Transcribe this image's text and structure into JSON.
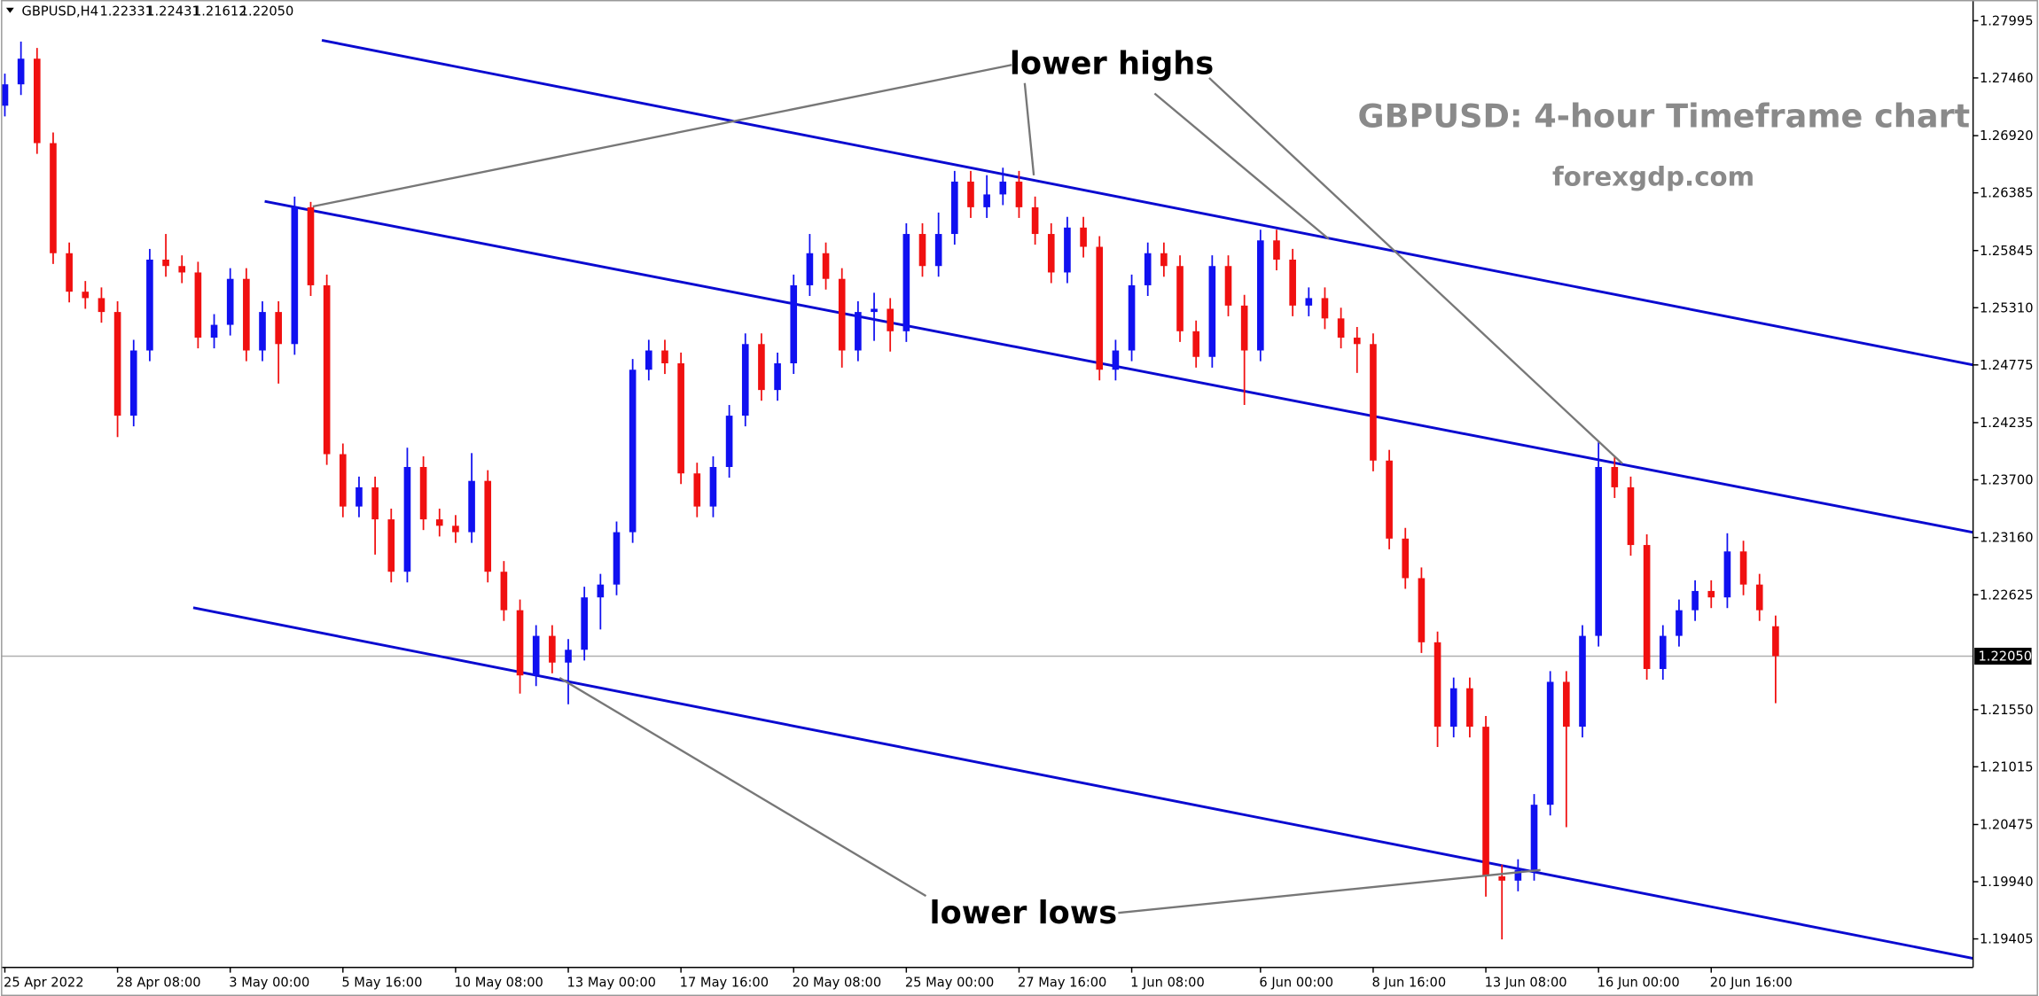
{
  "chart_data": {
    "type": "candlestick",
    "symbol": "GBPUSD,H4",
    "header_values": [
      1.22331,
      1.22431,
      1.21612,
      {
        "value": 1.2205,
        "label": "1.22050"
      }
    ],
    "watermark_title": "GBPUSD: 4-hour Timeframe chart",
    "watermark_site": "forexgdp.com",
    "annotations": [
      "lower highs",
      "lower lows"
    ],
    "up_color": "#1010f0",
    "down_color": "#f01010",
    "ylim": [
      1.19138,
      1.28189
    ],
    "yticks": [
      1.27995,
      {
        "value": 1.2746,
        "label": "1.27460"
      },
      {
        "value": 1.2692,
        "label": "1.26920"
      },
      1.26385,
      1.25845,
      {
        "value": 1.2531,
        "label": "1.25310"
      },
      1.24775,
      1.24235,
      {
        "value": 1.237,
        "label": "1.23700"
      },
      {
        "value": 1.2316,
        "label": "1.23160"
      },
      1.22625,
      {
        "value": 1.2155,
        "label": "1.21550"
      },
      1.21015,
      1.20475,
      {
        "value": 1.1994,
        "label": "1.19940"
      },
      1.19405
    ],
    "last_price": {
      "value": 1.2205,
      "label": "1.22050"
    },
    "categories": [
      "25 Apr 2022",
      null,
      null,
      null,
      null,
      null,
      null,
      "28 Apr 08:00",
      null,
      null,
      null,
      null,
      null,
      null,
      "3 May 00:00",
      null,
      null,
      null,
      null,
      null,
      null,
      "5 May 16:00",
      null,
      null,
      null,
      null,
      null,
      null,
      "10 May 08:00",
      null,
      null,
      null,
      null,
      null,
      null,
      "13 May 00:00",
      null,
      null,
      null,
      null,
      null,
      null,
      "17 May 16:00",
      null,
      null,
      null,
      null,
      null,
      null,
      "20 May 08:00",
      null,
      null,
      null,
      null,
      null,
      null,
      "25 May 00:00",
      null,
      null,
      null,
      null,
      null,
      null,
      "27 May 16:00",
      null,
      null,
      null,
      null,
      null,
      null,
      "1 Jun 08:00",
      null,
      null,
      null,
      null,
      null,
      null,
      null,
      "6 Jun 00:00",
      null,
      null,
      null,
      null,
      null,
      null,
      "8 Jun 16:00",
      null,
      null,
      null,
      null,
      null,
      null,
      "13 Jun 08:00",
      null,
      null,
      null,
      null,
      null,
      null,
      "16 Jun 00:00",
      null,
      null,
      null,
      null,
      null,
      null,
      "20 Jun 16:00",
      null,
      null,
      null,
      null
    ],
    "open": [
      1.272,
      1.274,
      1.2764,
      1.2685,
      1.2582,
      1.2546,
      1.254,
      1.2527,
      1.243,
      1.2491,
      1.2576,
      1.257,
      1.2564,
      1.2503,
      1.2515,
      1.2558,
      1.2491,
      1.2527,
      1.2497,
      1.2625,
      1.2552,
      1.2394,
      1.2345,
      1.2363,
      1.2333,
      1.2284,
      1.2382,
      1.2333,
      1.2327,
      1.2321,
      1.2369,
      1.2284,
      1.2248,
      1.2187,
      1.2224,
      1.2199,
      1.2211,
      1.226,
      1.2272,
      1.2321,
      1.2473,
      1.2491,
      1.2479,
      1.2376,
      1.2345,
      1.2382,
      1.243,
      1.2497,
      1.2454,
      1.2479,
      1.2552,
      1.2582,
      1.2558,
      1.2491,
      1.2527,
      1.253,
      1.2509,
      1.26,
      1.257,
      1.26,
      1.2649,
      1.2625,
      1.2637,
      1.2649,
      1.2625,
      1.26,
      1.2564,
      1.2606,
      1.2588,
      1.2473,
      1.2491,
      1.2552,
      1.2582,
      1.257,
      1.2509,
      1.2485,
      1.257,
      1.2533,
      1.2491,
      1.2594,
      1.2576,
      1.2533,
      1.254,
      1.2521,
      1.2503,
      1.2497,
      1.2388,
      1.2315,
      1.2278,
      1.2218,
      1.2139,
      1.2175,
      1.2139,
      1.1999,
      1.1995,
      1.2005,
      1.2066,
      1.2181,
      1.2139,
      1.2224,
      1.2382,
      1.2363,
      1.2309,
      1.2193,
      1.2224,
      1.2248,
      1.2266,
      1.226,
      1.2303,
      1.2272,
      1.2233
    ],
    "high": [
      1.275,
      1.278,
      1.2774,
      1.2695,
      1.2592,
      1.2556,
      1.255,
      1.2537,
      1.2501,
      1.2586,
      1.26,
      1.258,
      1.2574,
      1.2525,
      1.2568,
      1.2568,
      1.2537,
      1.2537,
      1.2635,
      1.263,
      1.2562,
      1.2404,
      1.2373,
      1.2373,
      1.2343,
      1.24,
      1.2392,
      1.2343,
      1.2337,
      1.2395,
      1.2379,
      1.2294,
      1.2258,
      1.2234,
      1.2234,
      1.2221,
      1.227,
      1.2282,
      1.2331,
      1.2483,
      1.2501,
      1.2501,
      1.2489,
      1.2386,
      1.2392,
      1.244,
      1.2507,
      1.2507,
      1.2489,
      1.2562,
      1.26,
      1.2592,
      1.2568,
      1.2537,
      1.2545,
      1.254,
      1.261,
      1.261,
      1.262,
      1.2659,
      1.2659,
      1.2655,
      1.2662,
      1.2659,
      1.2635,
      1.261,
      1.2616,
      1.2616,
      1.2598,
      1.2501,
      1.2562,
      1.2592,
      1.2592,
      1.258,
      1.2519,
      1.258,
      1.258,
      1.2543,
      1.2604,
      1.2604,
      1.2586,
      1.255,
      1.255,
      1.2531,
      1.2513,
      1.2507,
      1.2398,
      1.2325,
      1.2288,
      1.2228,
      1.2185,
      1.2185,
      1.2149,
      1.201,
      1.2015,
      1.2076,
      1.2191,
      1.2191,
      1.2234,
      1.2406,
      1.2392,
      1.2373,
      1.2319,
      1.2234,
      1.2258,
      1.2276,
      1.2276,
      1.232,
      1.2313,
      1.2282,
      1.2243
    ],
    "low": [
      1.271,
      1.273,
      1.2675,
      1.2572,
      1.2536,
      1.253,
      1.2517,
      1.241,
      1.242,
      1.2481,
      1.256,
      1.2554,
      1.2493,
      1.2493,
      1.2505,
      1.2481,
      1.2481,
      1.246,
      1.2487,
      1.2542,
      1.2384,
      1.2335,
      1.2335,
      1.23,
      1.2274,
      1.2274,
      1.2323,
      1.2317,
      1.2311,
      1.2311,
      1.2274,
      1.2238,
      1.217,
      1.2177,
      1.2189,
      1.216,
      1.2201,
      1.223,
      1.2262,
      1.2311,
      1.2463,
      1.2469,
      1.2366,
      1.2335,
      1.2335,
      1.2372,
      1.242,
      1.2444,
      1.2444,
      1.2469,
      1.2542,
      1.2548,
      1.2475,
      1.2481,
      1.25,
      1.249,
      1.2499,
      1.256,
      1.256,
      1.259,
      1.2615,
      1.2615,
      1.2627,
      1.2615,
      1.259,
      1.2554,
      1.2554,
      1.2578,
      1.2463,
      1.2463,
      1.2481,
      1.2542,
      1.256,
      1.2499,
      1.2475,
      1.2475,
      1.2523,
      1.244,
      1.2481,
      1.2566,
      1.2523,
      1.2523,
      1.2511,
      1.2493,
      1.247,
      1.2378,
      1.2305,
      1.2268,
      1.2208,
      1.212,
      1.2129,
      1.2129,
      1.198,
      1.194,
      1.1985,
      1.1995,
      1.2056,
      1.2045,
      1.2129,
      1.2214,
      1.2353,
      1.2299,
      1.2183,
      1.2183,
      1.2214,
      1.2238,
      1.225,
      1.225,
      1.2262,
      1.2238,
      1.2161
    ],
    "close": [
      1.274,
      1.2764,
      1.2685,
      1.2582,
      1.2546,
      1.254,
      1.2527,
      1.243,
      1.2491,
      1.2576,
      1.257,
      1.2564,
      1.2503,
      1.2515,
      1.2558,
      1.2491,
      1.2527,
      1.2497,
      1.2625,
      1.2552,
      1.2394,
      1.2345,
      1.2363,
      1.2333,
      1.2284,
      1.2382,
      1.2333,
      1.2327,
      1.2321,
      1.2369,
      1.2284,
      1.2248,
      1.2187,
      1.2224,
      1.2199,
      1.2211,
      1.226,
      1.2272,
      1.2321,
      1.2473,
      1.2491,
      1.2479,
      1.2376,
      1.2345,
      1.2382,
      1.243,
      1.2497,
      1.2454,
      1.2479,
      1.2552,
      1.2582,
      1.2558,
      1.2491,
      1.2527,
      1.253,
      1.2509,
      1.26,
      1.257,
      1.26,
      1.2649,
      1.2625,
      1.2637,
      1.2649,
      1.2625,
      1.26,
      1.2564,
      1.2606,
      1.2588,
      1.2473,
      1.2491,
      1.2552,
      1.2582,
      1.257,
      1.2509,
      1.2485,
      1.257,
      1.2533,
      1.2491,
      1.2594,
      1.2576,
      1.2533,
      1.254,
      1.2521,
      1.2503,
      1.2497,
      1.2388,
      1.2315,
      1.2278,
      1.2218,
      1.2139,
      1.2175,
      1.2139,
      1.1999,
      1.1995,
      1.2005,
      1.2066,
      1.2181,
      1.2139,
      1.2224,
      1.2382,
      1.2363,
      1.2309,
      1.2193,
      1.2224,
      1.2248,
      1.2266,
      1.226,
      1.2303,
      1.2272,
      1.2248,
      1.2205
    ]
  }
}
